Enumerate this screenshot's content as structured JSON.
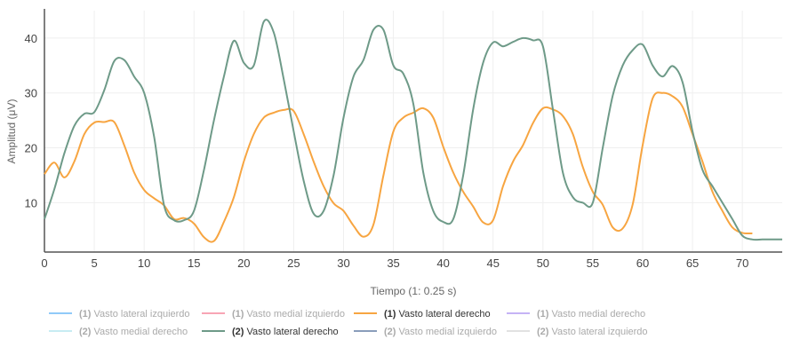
{
  "chart_data": {
    "type": "line",
    "xlabel": "Tiempo (1: 0.25 s)",
    "ylabel": "Amplitud (μV)",
    "xlim": [
      0,
      74
    ],
    "ylim": [
      1,
      45
    ],
    "x_ticks": [
      0,
      5,
      10,
      15,
      20,
      25,
      30,
      35,
      40,
      45,
      50,
      55,
      60,
      65,
      70
    ],
    "y_ticks": [
      10,
      20,
      30,
      40
    ],
    "grid": true,
    "legend_position": "bottom",
    "legend": [
      {
        "prefix": "(1)",
        "name": "Vasto lateral izquierdo",
        "color": "#90caf9",
        "active": false
      },
      {
        "prefix": "(1)",
        "name": "Vasto medial izquierdo",
        "color": "#f8a5b5",
        "active": false
      },
      {
        "prefix": "(1)",
        "name": "Vasto lateral derecho",
        "color": "#f7a541",
        "active": true
      },
      {
        "prefix": "(1)",
        "name": "Vasto medial derecho",
        "color": "#c5b3f5",
        "active": false
      },
      {
        "prefix": "(2)",
        "name": "Vasto medial derecho",
        "color": "#c7ecf2",
        "active": false
      },
      {
        "prefix": "(2)",
        "name": "Vasto lateral derecho",
        "color": "#6e9a88",
        "active": true
      },
      {
        "prefix": "(2)",
        "name": "Vasto medial izquierdo",
        "color": "#8a9dbb",
        "active": false
      },
      {
        "prefix": "(2)",
        "name": "Vasto lateral izquierdo",
        "color": "#e2e2e2",
        "active": false
      }
    ],
    "series": [
      {
        "name": "(1) Vasto lateral derecho",
        "color": "#f7a541",
        "x": [
          0,
          1,
          2,
          3,
          4,
          5,
          6,
          7,
          8,
          9,
          10,
          11,
          12,
          13,
          14,
          15,
          16,
          17,
          18,
          19,
          20,
          21,
          22,
          23,
          24,
          25,
          26,
          27,
          28,
          29,
          30,
          31,
          32,
          33,
          34,
          35,
          36,
          37,
          38,
          39,
          40,
          41,
          42,
          43,
          44,
          45,
          46,
          47,
          48,
          49,
          50,
          51,
          52,
          53,
          54,
          55,
          56,
          57,
          58,
          59,
          60,
          61,
          62,
          63,
          64,
          65,
          66,
          67,
          68,
          69,
          70,
          71
        ],
        "values": [
          15.2,
          17.3,
          14.6,
          17.5,
          22.5,
          24.6,
          24.7,
          24.7,
          20.5,
          15.5,
          12.3,
          10.8,
          9.5,
          7.0,
          7.2,
          6.2,
          3.7,
          3.0,
          6.5,
          11.0,
          17.5,
          22.5,
          25.5,
          26.4,
          26.9,
          26.7,
          22.5,
          17.5,
          13.0,
          9.9,
          8.5,
          5.8,
          3.8,
          6.0,
          15.0,
          23.0,
          25.5,
          26.4,
          27.2,
          25.5,
          20.2,
          15.5,
          12.0,
          9.3,
          6.4,
          6.8,
          13.0,
          17.5,
          20.5,
          24.5,
          27.2,
          27.0,
          25.8,
          22.5,
          16.5,
          12.0,
          9.6,
          5.5,
          5.3,
          9.7,
          20.5,
          29.0,
          30.0,
          29.4,
          27.5,
          22.5,
          17.5,
          12.0,
          8.5,
          5.5,
          4.5,
          4.4
        ]
      },
      {
        "name": "(2) Vasto lateral derecho",
        "color": "#6e9a88",
        "x": [
          0,
          1,
          2,
          3,
          4,
          5,
          6,
          7,
          8,
          9,
          10,
          11,
          12,
          13,
          14,
          15,
          16,
          17,
          18,
          19,
          20,
          21,
          22,
          23,
          24,
          25,
          26,
          27,
          28,
          29,
          30,
          31,
          32,
          33,
          34,
          35,
          36,
          37,
          38,
          39,
          40,
          41,
          42,
          43,
          44,
          45,
          46,
          47,
          48,
          49,
          50,
          51,
          52,
          53,
          54,
          55,
          56,
          57,
          58,
          59,
          60,
          61,
          62,
          63,
          64,
          65,
          66,
          67,
          68,
          69,
          70,
          71,
          72,
          73,
          74
        ],
        "values": [
          7.0,
          12.5,
          19.0,
          24.0,
          26.2,
          26.5,
          30.5,
          35.8,
          36.0,
          33.0,
          30.0,
          22.0,
          9.5,
          6.8,
          6.8,
          8.5,
          16.0,
          25.0,
          33.0,
          39.5,
          35.5,
          35.0,
          43.0,
          41.0,
          32.5,
          23.0,
          14.0,
          8.0,
          8.5,
          15.0,
          25.5,
          33.0,
          36.0,
          41.5,
          41.5,
          35.0,
          33.5,
          28.0,
          15.5,
          8.5,
          6.5,
          7.0,
          15.0,
          27.0,
          35.5,
          39.2,
          38.5,
          39.3,
          40.0,
          39.6,
          38.5,
          27.0,
          15.5,
          11.0,
          10.0,
          10.0,
          20.0,
          29.5,
          35.0,
          37.8,
          38.8,
          35.0,
          33.0,
          34.9,
          32.0,
          23.0,
          16.0,
          13.0,
          10.0,
          7.0,
          4.0,
          3.3,
          3.3,
          3.3,
          3.3
        ]
      }
    ]
  }
}
